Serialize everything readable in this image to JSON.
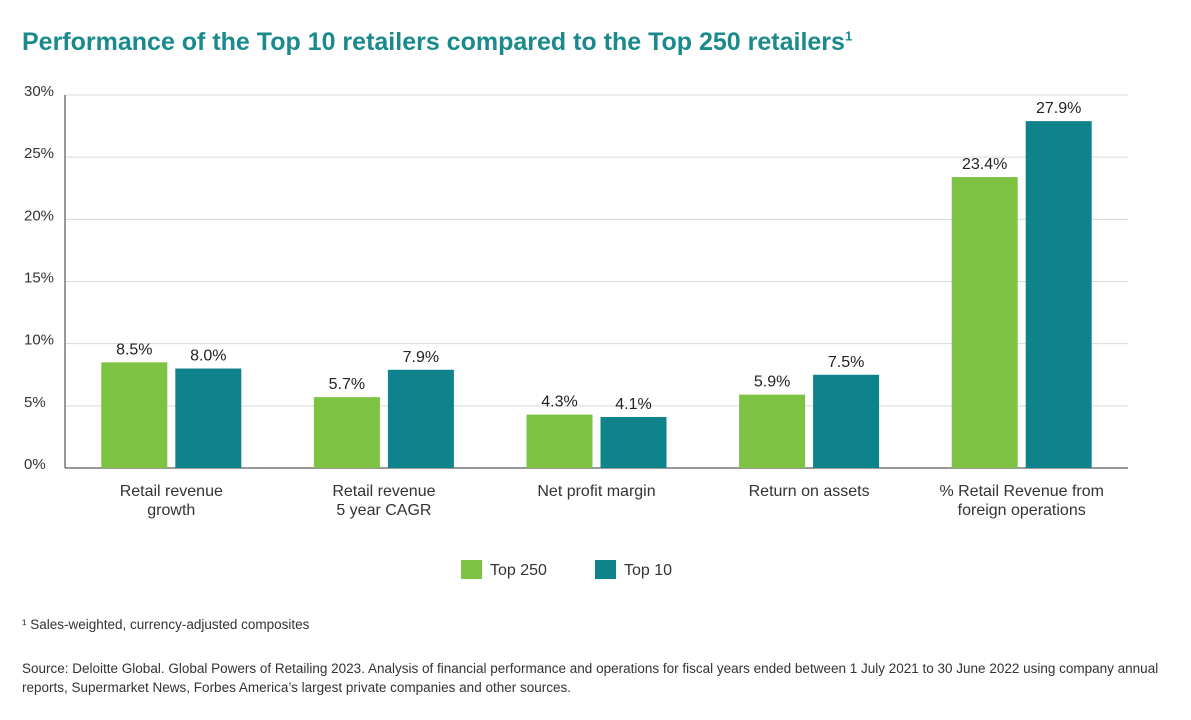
{
  "title": "Performance of the Top 10 retailers compared to the Top 250 retailers",
  "title_superscript": "1",
  "chart_data": {
    "type": "bar",
    "title": "Performance of the Top 10 retailers compared to the Top 250 retailers",
    "categories": [
      [
        "Retail revenue",
        "growth"
      ],
      [
        "Retail revenue",
        "5 year CAGR"
      ],
      [
        "Net profit margin"
      ],
      [
        "Return on assets"
      ],
      [
        "% Retail Revenue from",
        "foreign operations"
      ]
    ],
    "series": [
      {
        "name": "Top 250",
        "color": "#7dc242",
        "values": [
          8.5,
          5.7,
          4.3,
          5.9,
          23.4
        ],
        "labels": [
          "8.5%",
          "5.7%",
          "4.3%",
          "5.9%",
          "23.4%"
        ]
      },
      {
        "name": "Top 10",
        "color": "#0e838c",
        "values": [
          8.0,
          7.9,
          4.1,
          7.5,
          27.9
        ],
        "labels": [
          "8.0%",
          "7.9%",
          "4.1%",
          "7.5%",
          "27.9%"
        ]
      }
    ],
    "ylim": [
      0,
      30
    ],
    "yticks": [
      0,
      5,
      10,
      15,
      20,
      25,
      30
    ],
    "ytick_labels": [
      "0%",
      "5%",
      "10%",
      "15%",
      "20%",
      "25%",
      "30%"
    ],
    "grid": true,
    "legend": "bottom-center",
    "xlabel": "",
    "ylabel": ""
  },
  "footnote": "¹ Sales-weighted, currency-adjusted composites",
  "source": "Source: Deloitte Global. Global Powers of Retailing 2023. Analysis of financial performance and operations for fiscal years ended between 1 July 2021 to 30 June 2022 using company annual reports, Supermarket News, Forbes America’s largest private companies and other sources."
}
